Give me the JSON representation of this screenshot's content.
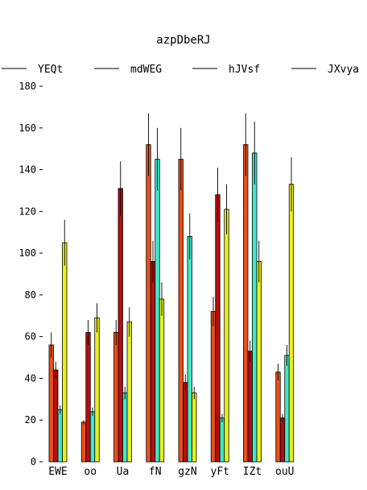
{
  "chart_data": {
    "type": "bar",
    "title": "azpDbeRJ",
    "xlabel": "",
    "ylabel": "",
    "ylim": [
      0,
      180
    ],
    "yticks": [
      0,
      20,
      40,
      60,
      80,
      100,
      120,
      140,
      160,
      180
    ],
    "grid": false,
    "legend_position": "top",
    "categories": [
      "EWE",
      "oo",
      "Ua",
      "fN",
      "gzN",
      "yFt",
      "IZt",
      "ouU"
    ],
    "series": [
      {
        "name": "YEQt",
        "color": "#e8501a",
        "values": [
          56,
          19,
          62,
          152,
          145,
          72,
          152,
          43
        ],
        "errors": [
          6,
          1,
          6,
          15,
          15,
          7,
          15,
          4
        ]
      },
      {
        "name": "mdWEG",
        "color": "#b40f0f",
        "values": [
          44,
          62,
          131,
          96,
          38,
          128,
          53,
          21
        ],
        "errors": [
          4,
          6,
          13,
          10,
          4,
          13,
          5,
          2
        ]
      },
      {
        "name": "hJVsf",
        "color": "#40e8c8",
        "values": [
          25,
          24,
          33,
          145,
          108,
          21,
          148,
          51
        ],
        "errors": [
          2,
          2,
          3,
          15,
          11,
          2,
          15,
          5
        ]
      },
      {
        "name": "JXvya",
        "color": "#e8f01e",
        "values": [
          105,
          69,
          67,
          78,
          33,
          121,
          96,
          133
        ],
        "errors": [
          11,
          7,
          7,
          8,
          3,
          12,
          10,
          13
        ]
      }
    ]
  }
}
